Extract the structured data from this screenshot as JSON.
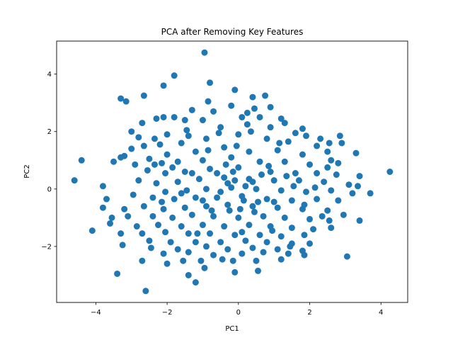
{
  "chart_data": {
    "type": "scatter",
    "title": "PCA after Removing Key Features",
    "xlabel": "PC1",
    "ylabel": "PC2",
    "xlim": [
      -5.1,
      4.75
    ],
    "ylim": [
      -3.95,
      5.15
    ],
    "xticks": [
      -4,
      -2,
      0,
      2,
      4
    ],
    "yticks": [
      -2,
      0,
      2,
      4
    ],
    "xtick_labels": [
      "−4",
      "−2",
      "0",
      "2",
      "4"
    ],
    "ytick_labels": [
      "−2",
      "0",
      "2",
      "4"
    ],
    "grid": false,
    "color": "#1f77b4",
    "series": [
      {
        "points": [
          [
            -0.95,
            4.75
          ],
          [
            -0.8,
            3.7
          ],
          [
            -1.8,
            3.95
          ],
          [
            -2.1,
            3.6
          ],
          [
            -0.1,
            3.45
          ],
          [
            -3.3,
            3.15
          ],
          [
            -3.15,
            3.05
          ],
          [
            -2.65,
            3.25
          ],
          [
            -0.85,
            3.05
          ],
          [
            0.4,
            3.2
          ],
          [
            0.75,
            3.25
          ],
          [
            -2.3,
            2.45
          ],
          [
            -2.1,
            2.5
          ],
          [
            -1.8,
            2.5
          ],
          [
            -1.3,
            2.75
          ],
          [
            -0.7,
            2.7
          ],
          [
            -0.2,
            2.9
          ],
          [
            0.45,
            2.8
          ],
          [
            0.9,
            2.85
          ],
          [
            1.2,
            2.45
          ],
          [
            -2.7,
            2.3
          ],
          [
            -3.0,
            2.0
          ],
          [
            -2.8,
            1.8
          ],
          [
            -1.5,
            2.4
          ],
          [
            -1.0,
            2.4
          ],
          [
            0.1,
            2.5
          ],
          [
            0.6,
            2.5
          ],
          [
            1.3,
            2.3
          ],
          [
            1.8,
            2.1
          ],
          [
            2.3,
            1.75
          ],
          [
            2.85,
            1.85
          ],
          [
            2.9,
            1.6
          ],
          [
            -2.0,
            1.9
          ],
          [
            -1.4,
            1.85
          ],
          [
            -0.5,
            2.15
          ],
          [
            0.25,
            2.25
          ],
          [
            0.9,
            2.15
          ],
          [
            1.6,
            1.95
          ],
          [
            1.9,
            1.85
          ],
          [
            -2.65,
            1.5
          ],
          [
            -3.0,
            1.4
          ],
          [
            -2.2,
            1.55
          ],
          [
            -1.6,
            1.6
          ],
          [
            -0.9,
            1.75
          ],
          [
            0.0,
            1.9
          ],
          [
            0.8,
            1.75
          ],
          [
            1.4,
            1.65
          ],
          [
            2.2,
            1.5
          ],
          [
            2.55,
            1.6
          ],
          [
            3.3,
            1.25
          ],
          [
            -3.2,
            1.15
          ],
          [
            -3.3,
            1.1
          ],
          [
            -3.5,
            0.95
          ],
          [
            -2.5,
            1.05
          ],
          [
            -2.0,
            1.2
          ],
          [
            -1.2,
            1.3
          ],
          [
            -0.4,
            1.45
          ],
          [
            0.3,
            1.3
          ],
          [
            1.1,
            1.35
          ],
          [
            1.8,
            1.2
          ],
          [
            2.5,
            1.3
          ],
          [
            2.6,
            1.0
          ],
          [
            2.8,
            0.9
          ],
          [
            -4.4,
            1.0
          ],
          [
            -2.35,
            0.85
          ],
          [
            -2.15,
            0.9
          ],
          [
            -1.7,
            0.95
          ],
          [
            -1.0,
            1.0
          ],
          [
            -0.2,
            1.1
          ],
          [
            0.6,
            0.95
          ],
          [
            1.3,
            0.95
          ],
          [
            2.0,
            0.85
          ],
          [
            2.5,
            0.75
          ],
          [
            -2.9,
            0.85
          ],
          [
            -2.55,
            0.65
          ],
          [
            -2.05,
            0.55
          ],
          [
            -1.5,
            0.6
          ],
          [
            -0.8,
            0.7
          ],
          [
            0.0,
            0.75
          ],
          [
            0.9,
            0.6
          ],
          [
            1.6,
            0.55
          ],
          [
            2.2,
            0.55
          ],
          [
            2.75,
            0.5
          ],
          [
            3.4,
            0.45
          ],
          [
            -4.6,
            0.3
          ],
          [
            -3.8,
            0.1
          ],
          [
            -2.8,
            0.3
          ],
          [
            -2.3,
            0.2
          ],
          [
            -1.7,
            0.25
          ],
          [
            -1.1,
            0.35
          ],
          [
            -0.4,
            0.4
          ],
          [
            0.3,
            0.35
          ],
          [
            1.0,
            0.3
          ],
          [
            1.7,
            0.3
          ],
          [
            2.4,
            0.25
          ],
          [
            3.1,
            0.15
          ],
          [
            3.35,
            0.1
          ],
          [
            4.25,
            0.6
          ],
          [
            -2.05,
            -0.1
          ],
          [
            -1.45,
            -0.05
          ],
          [
            -0.9,
            0.0
          ],
          [
            -0.2,
            0.05
          ],
          [
            0.5,
            0.0
          ],
          [
            1.2,
            -0.05
          ],
          [
            1.9,
            -0.1
          ],
          [
            2.6,
            -0.05
          ],
          [
            3.2,
            -0.15
          ],
          [
            3.7,
            -0.15
          ],
          [
            -3.7,
            -0.35
          ],
          [
            -2.95,
            -0.2
          ],
          [
            -2.4,
            -0.3
          ],
          [
            -1.8,
            -0.35
          ],
          [
            -1.2,
            -0.3
          ],
          [
            -0.6,
            -0.3
          ],
          [
            0.1,
            -0.25
          ],
          [
            0.8,
            -0.35
          ],
          [
            1.5,
            -0.4
          ],
          [
            2.2,
            -0.35
          ],
          [
            2.8,
            -0.4
          ],
          [
            -3.8,
            -0.65
          ],
          [
            -3.2,
            -0.7
          ],
          [
            -2.65,
            -0.6
          ],
          [
            -2.1,
            -0.7
          ],
          [
            -1.5,
            -0.65
          ],
          [
            -0.9,
            -0.6
          ],
          [
            -0.3,
            -0.55
          ],
          [
            0.4,
            -0.6
          ],
          [
            1.1,
            -0.65
          ],
          [
            1.8,
            -0.7
          ],
          [
            2.5,
            -0.75
          ],
          [
            2.95,
            -0.9
          ],
          [
            3.4,
            -1.1
          ],
          [
            -3.55,
            -1.0
          ],
          [
            -3.1,
            -0.95
          ],
          [
            -2.4,
            -0.95
          ],
          [
            -1.85,
            -1.0
          ],
          [
            -1.3,
            -0.9
          ],
          [
            -0.7,
            -0.95
          ],
          [
            0.0,
            -1.0
          ],
          [
            0.7,
            -0.95
          ],
          [
            1.3,
            -1.0
          ],
          [
            2.0,
            -1.05
          ],
          [
            2.55,
            -1.1
          ],
          [
            -3.6,
            -1.2
          ],
          [
            -2.85,
            -1.3
          ],
          [
            -2.25,
            -1.25
          ],
          [
            -1.6,
            -1.3
          ],
          [
            -1.0,
            -1.25
          ],
          [
            -0.4,
            -1.3
          ],
          [
            0.3,
            -1.25
          ],
          [
            0.9,
            -1.3
          ],
          [
            1.5,
            -1.35
          ],
          [
            2.1,
            -1.4
          ],
          [
            2.6,
            -1.35
          ],
          [
            -4.1,
            -1.45
          ],
          [
            -3.3,
            -1.55
          ],
          [
            -2.7,
            -1.55
          ],
          [
            -2.05,
            -1.5
          ],
          [
            -1.4,
            -1.55
          ],
          [
            -0.8,
            -1.55
          ],
          [
            -0.1,
            -1.6
          ],
          [
            0.6,
            -1.6
          ],
          [
            1.2,
            -1.65
          ],
          [
            1.85,
            -1.6
          ],
          [
            -2.5,
            -1.8
          ],
          [
            -1.9,
            -1.85
          ],
          [
            -1.2,
            -1.85
          ],
          [
            -0.5,
            -1.85
          ],
          [
            0.2,
            -1.8
          ],
          [
            0.8,
            -1.85
          ],
          [
            1.5,
            -1.9
          ],
          [
            2.0,
            -1.9
          ],
          [
            -3.25,
            -1.95
          ],
          [
            -2.45,
            -2.05
          ],
          [
            -1.7,
            -2.1
          ],
          [
            -0.9,
            -2.0
          ],
          [
            -0.3,
            -2.1
          ],
          [
            0.4,
            -2.05
          ],
          [
            1.1,
            -2.1
          ],
          [
            1.8,
            -2.15
          ],
          [
            -2.1,
            -2.25
          ],
          [
            -1.4,
            -2.2
          ],
          [
            -0.7,
            -2.3
          ],
          [
            0.1,
            -2.25
          ],
          [
            0.7,
            -2.2
          ],
          [
            1.4,
            -2.25
          ],
          [
            1.85,
            -2.3
          ],
          [
            3.05,
            -2.35
          ],
          [
            -2.7,
            -2.5
          ],
          [
            -1.55,
            -2.5
          ],
          [
            -1.05,
            -2.5
          ],
          [
            -0.15,
            -2.5
          ],
          [
            0.5,
            -2.5
          ],
          [
            1.2,
            -2.45
          ],
          [
            -2.0,
            -2.6
          ],
          [
            -0.95,
            -2.75
          ],
          [
            0.55,
            -2.85
          ],
          [
            -0.1,
            -2.9
          ],
          [
            -3.4,
            -2.95
          ],
          [
            -1.4,
            -3.0
          ],
          [
            -1.2,
            -3.25
          ],
          [
            -2.6,
            -3.55
          ],
          [
            -0.3,
            0.2
          ],
          [
            -0.1,
            0.3
          ],
          [
            0.2,
            0.1
          ],
          [
            0.4,
            0.25
          ],
          [
            -0.5,
            -0.1
          ],
          [
            0.15,
            -0.4
          ],
          [
            -0.25,
            -0.75
          ],
          [
            0.55,
            -0.45
          ],
          [
            -0.6,
            0.55
          ],
          [
            0.65,
            0.5
          ],
          [
            -1.0,
            -0.4
          ],
          [
            1.0,
            -0.45
          ],
          [
            -0.35,
            0.85
          ],
          [
            0.45,
            -0.8
          ],
          [
            -0.75,
            -0.75
          ],
          [
            0.85,
            0.8
          ],
          [
            -1.3,
            0.55
          ],
          [
            1.35,
            0.45
          ],
          [
            -0.05,
            1.5
          ],
          [
            0.1,
            -1.5
          ],
          [
            -1.6,
            -0.15
          ],
          [
            1.55,
            0.1
          ],
          [
            -0.85,
            1.35
          ],
          [
            0.95,
            -1.45
          ],
          [
            -1.15,
            -1.55
          ],
          [
            1.15,
            1.6
          ],
          [
            -0.55,
            1.95
          ],
          [
            0.35,
            2.0
          ],
          [
            -1.85,
            0.75
          ],
          [
            1.85,
            -0.55
          ],
          [
            -2.15,
            -0.45
          ],
          [
            2.15,
            0.05
          ],
          [
            -0.45,
            -2.45
          ],
          [
            0.25,
            2.65
          ],
          [
            -1.45,
            2.05
          ],
          [
            1.45,
            -2.0
          ],
          [
            -2.35,
            1.75
          ],
          [
            2.35,
            -0.95
          ],
          [
            -0.15,
            0.6
          ],
          [
            0.05,
            -0.7
          ]
        ]
      }
    ]
  }
}
